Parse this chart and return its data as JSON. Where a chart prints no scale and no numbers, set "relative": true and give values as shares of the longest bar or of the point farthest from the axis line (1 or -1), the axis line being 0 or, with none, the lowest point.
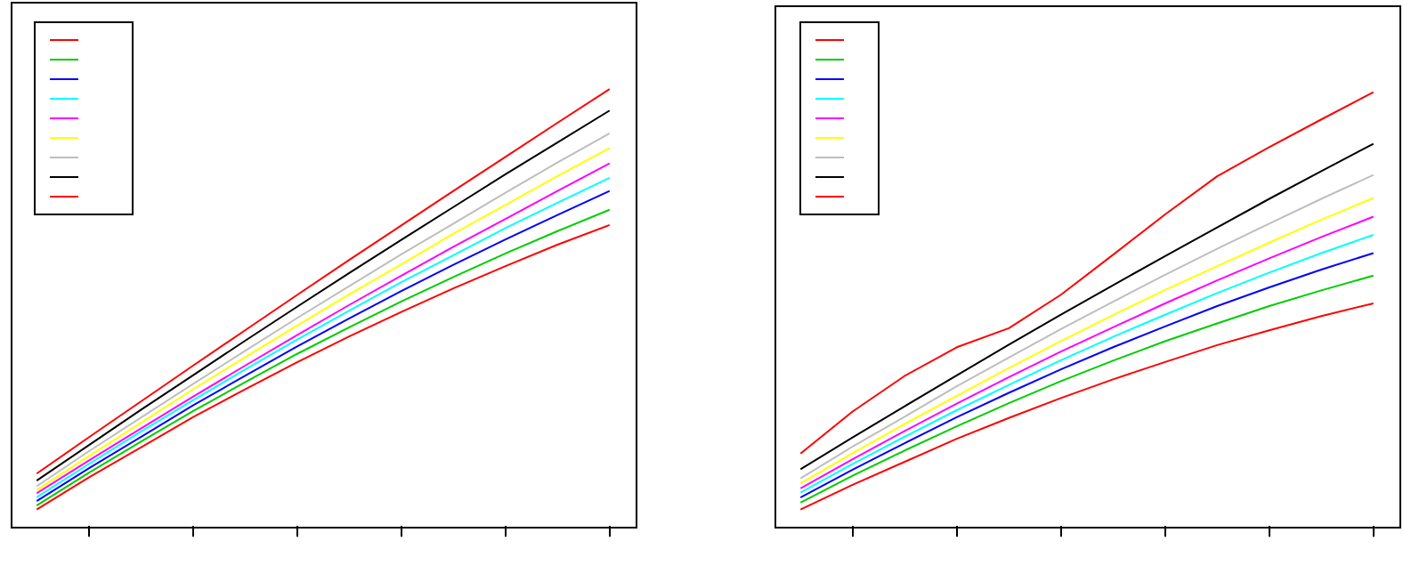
{
  "chart_data": [
    {
      "type": "line",
      "relative": true,
      "categories": [
        null,
        null,
        null,
        null,
        null,
        null,
        null,
        null,
        null,
        null,
        null,
        null
      ],
      "series": [
        {
          "color": "#ff0000",
          "values": [
            0.038,
            0.111,
            0.18,
            0.249,
            0.313,
            0.375,
            0.434,
            0.49,
            0.544,
            0.595,
            0.644,
            0.689
          ]
        },
        {
          "color": "#00cd00",
          "values": [
            0.047,
            0.122,
            0.193,
            0.263,
            0.329,
            0.394,
            0.455,
            0.514,
            0.57,
            0.624,
            0.675,
            0.724
          ]
        },
        {
          "color": "#0000ff",
          "values": [
            0.057,
            0.132,
            0.204,
            0.276,
            0.344,
            0.411,
            0.475,
            0.538,
            0.598,
            0.656,
            0.712,
            0.767
          ]
        },
        {
          "color": "#00ffff",
          "values": [
            0.066,
            0.142,
            0.216,
            0.288,
            0.358,
            0.427,
            0.493,
            0.558,
            0.62,
            0.682,
            0.74,
            0.797
          ]
        },
        {
          "color": "#ff00ff",
          "values": [
            0.075,
            0.15,
            0.223,
            0.296,
            0.367,
            0.437,
            0.506,
            0.573,
            0.639,
            0.703,
            0.767,
            0.83
          ]
        },
        {
          "color": "#ffff00",
          "values": [
            0.082,
            0.16,
            0.236,
            0.313,
            0.386,
            0.459,
            0.53,
            0.599,
            0.669,
            0.735,
            0.801,
            0.865
          ]
        },
        {
          "color": "#bebebe",
          "values": [
            0.091,
            0.171,
            0.248,
            0.325,
            0.401,
            0.476,
            0.549,
            0.622,
            0.692,
            0.763,
            0.832,
            0.899
          ]
        },
        {
          "color": "#000000",
          "values": [
            0.104,
            0.185,
            0.266,
            0.345,
            0.424,
            0.502,
            0.579,
            0.655,
            0.73,
            0.805,
            0.878,
            0.951
          ]
        },
        {
          "color": "#ff0000",
          "values": [
            0.12,
            0.203,
            0.285,
            0.367,
            0.448,
            0.529,
            0.609,
            0.688,
            0.767,
            0.845,
            0.923,
            1
          ]
        }
      ]
    },
    {
      "type": "line",
      "relative": true,
      "categories": [
        null,
        null,
        null,
        null,
        null,
        null,
        null,
        null,
        null,
        null,
        null,
        null
      ],
      "series": [
        {
          "color": "#ff0000",
          "values": [
            0.038,
            0.095,
            0.148,
            0.201,
            0.249,
            0.295,
            0.338,
            0.378,
            0.417,
            0.451,
            0.484,
            0.513
          ]
        },
        {
          "color": "#00cd00",
          "values": [
            0.054,
            0.116,
            0.174,
            0.23,
            0.283,
            0.334,
            0.381,
            0.426,
            0.467,
            0.507,
            0.543,
            0.577
          ]
        },
        {
          "color": "#0000ff",
          "values": [
            0.066,
            0.13,
            0.191,
            0.251,
            0.307,
            0.361,
            0.412,
            0.46,
            0.507,
            0.55,
            0.591,
            0.629
          ]
        },
        {
          "color": "#00ffff",
          "values": [
            0.077,
            0.143,
            0.206,
            0.267,
            0.325,
            0.382,
            0.436,
            0.487,
            0.537,
            0.584,
            0.629,
            0.671
          ]
        },
        {
          "color": "#ff00ff",
          "values": [
            0.087,
            0.154,
            0.219,
            0.282,
            0.343,
            0.402,
            0.458,
            0.513,
            0.566,
            0.617,
            0.666,
            0.713
          ]
        },
        {
          "color": "#ffff00",
          "values": [
            0.098,
            0.168,
            0.235,
            0.3,
            0.364,
            0.426,
            0.486,
            0.544,
            0.599,
            0.653,
            0.706,
            0.756
          ]
        },
        {
          "color": "#bebebe",
          "values": [
            0.11,
            0.183,
            0.252,
            0.322,
            0.388,
            0.454,
            0.517,
            0.579,
            0.639,
            0.697,
            0.754,
            0.809
          ]
        },
        {
          "color": "#000000",
          "values": [
            0.131,
            0.204,
            0.276,
            0.347,
            0.418,
            0.487,
            0.555,
            0.622,
            0.688,
            0.754,
            0.818,
            0.881
          ]
        },
        {
          "color": "#ff0000",
          "values": [
            0.167,
            0.264,
            0.346,
            0.412,
            0.456,
            0.533,
            0.625,
            0.718,
            0.806,
            0.873,
            0.937,
            1
          ]
        }
      ]
    }
  ]
}
